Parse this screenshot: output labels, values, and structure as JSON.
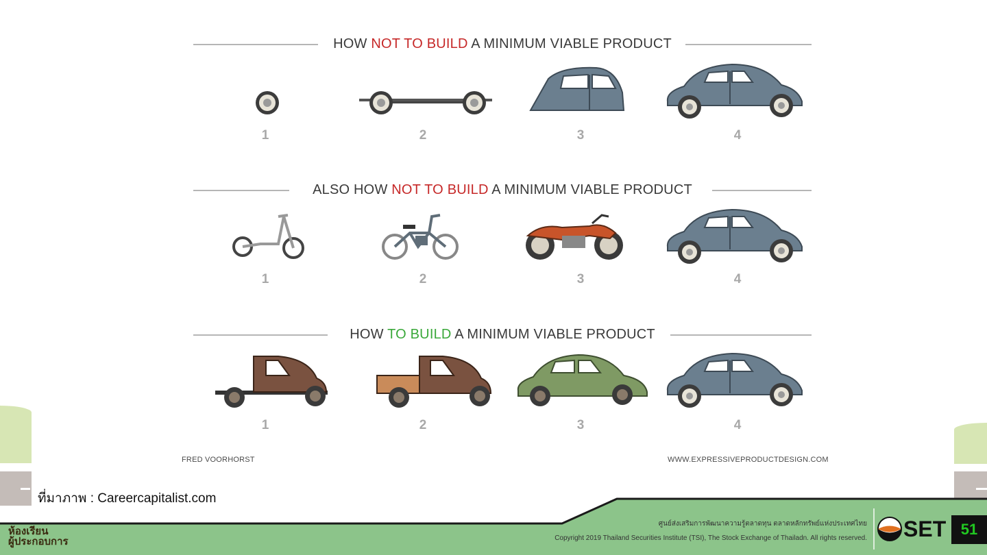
{
  "rows": [
    {
      "title_pre": "HOW ",
      "title_highlight": "NOT TO BUILD",
      "title_post": " A MINIMUM VIABLE PRODUCT",
      "highlight_color": "#c62828",
      "items": [
        {
          "num": "1",
          "icon": "wheel-icon"
        },
        {
          "num": "2",
          "icon": "chassis-icon"
        },
        {
          "num": "3",
          "icon": "car-body-icon"
        },
        {
          "num": "4",
          "icon": "car-icon"
        }
      ]
    },
    {
      "title_pre": "ALSO HOW ",
      "title_highlight": "NOT TO BUILD",
      "title_post": " A MINIMUM VIABLE PRODUCT",
      "highlight_color": "#c62828",
      "items": [
        {
          "num": "1",
          "icon": "scooter-icon"
        },
        {
          "num": "2",
          "icon": "bicycle-icon"
        },
        {
          "num": "3",
          "icon": "motorcycle-icon"
        },
        {
          "num": "4",
          "icon": "car-icon"
        }
      ]
    },
    {
      "title_pre": "HOW ",
      "title_highlight": "TO BUILD",
      "title_post": " A MINIMUM VIABLE PRODUCT",
      "highlight_color": "#3aa83a",
      "items": [
        {
          "num": "1",
          "icon": "truck-chassis-icon"
        },
        {
          "num": "2",
          "icon": "pickup-truck-icon"
        },
        {
          "num": "3",
          "icon": "green-car-icon"
        },
        {
          "num": "4",
          "icon": "car-icon"
        }
      ]
    }
  ],
  "credits": {
    "author": "FRED VOORHORST",
    "website": "WWW.EXPRESSIVEPRODUCTDESIGN.COM"
  },
  "source": "ที่มาภาพ : Careercapitalist.com",
  "footer": {
    "thai_line": "ศูนย์ส่งเสริมการพัฒนาความรู้ตลาดทุน ตลาดหลักทรัพย์แห่งประเทศไทย",
    "copyright": "Copyright 2019 Thailand Securities Institute (TSI), The Stock Exchange of Thailadn. All rights reserved.",
    "set_logo": "SET",
    "page_number": "51",
    "left_logo_line1": "ห้องเรียน",
    "left_logo_line2": "ผู้ประกอบการ"
  },
  "colors": {
    "footer_green": "#8cc48a",
    "side_light_green": "#d7e6b4",
    "side_gray": "#c4bcb8",
    "car_blue": "#6b7f8f",
    "truck_brown": "#7a5240",
    "car_green": "#7f9a64",
    "moto_red": "#c8542a"
  }
}
